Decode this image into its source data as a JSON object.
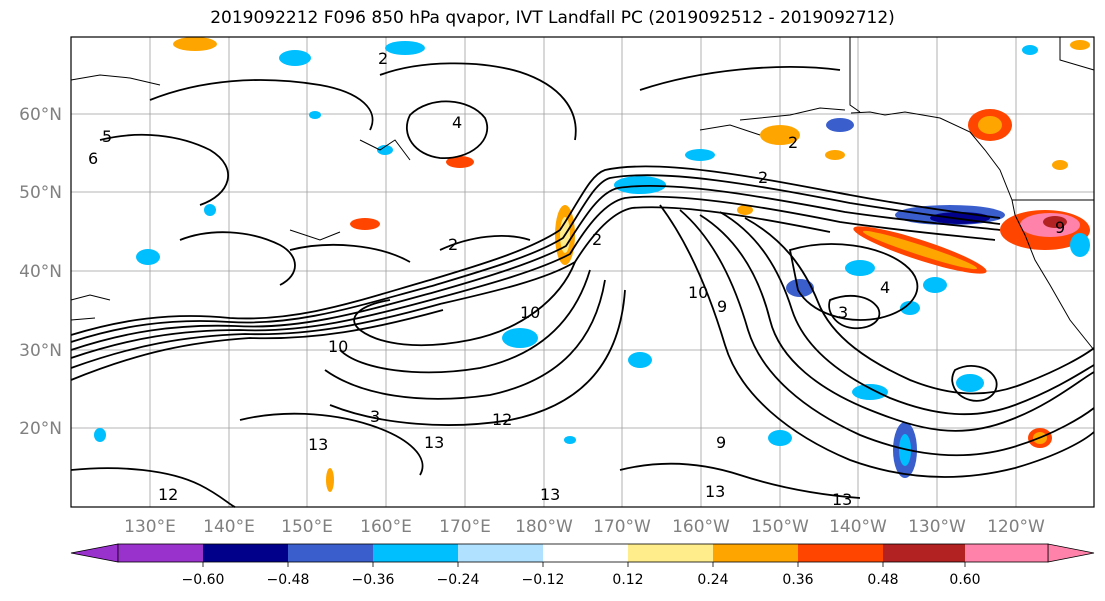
{
  "title": "2019092212 F096 850 hPa qvapor, IVT Landfall PC (2019092512 - 2019092712)",
  "map": {
    "lat_labels": [
      "60°N",
      "50°N",
      "40°N",
      "30°N",
      "20°N"
    ],
    "lon_labels": [
      "130°E",
      "140°E",
      "150°E",
      "160°E",
      "170°E",
      "180°W",
      "170°W",
      "160°W",
      "150°W",
      "140°W",
      "130°W",
      "120°W"
    ],
    "contour_labels": [
      "2",
      "5",
      "6",
      "4",
      "2",
      "2",
      "2",
      "2",
      "10",
      "9",
      "4",
      "3",
      "10",
      "12",
      "13",
      "13",
      "13",
      "12",
      "9",
      "13",
      "13",
      "9",
      "3",
      "10"
    ]
  },
  "colorbar": {
    "colors": [
      "#9932cc",
      "#00008b",
      "#3a5fcd",
      "#00bfff",
      "#b0e2ff",
      "#ffffff",
      "#ffec8b",
      "#ffa500",
      "#ff4500",
      "#b22222",
      "#ff82ab"
    ],
    "tick_labels": [
      "−0.60",
      "−0.48",
      "−0.36",
      "−0.24",
      "−0.12",
      "0.12",
      "0.24",
      "0.36",
      "0.48",
      "0.60"
    ]
  }
}
